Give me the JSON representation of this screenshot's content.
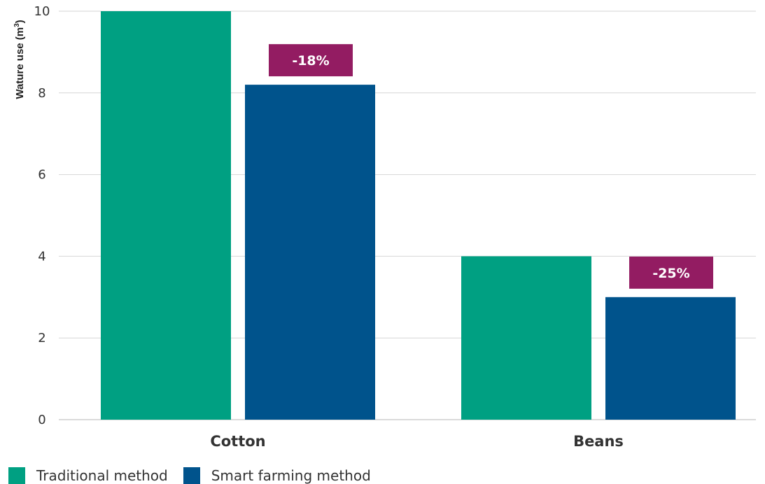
{
  "chart_data": {
    "type": "bar",
    "categories": [
      "Cotton",
      "Beans"
    ],
    "series": [
      {
        "name": "Traditional method",
        "values": [
          10,
          4
        ],
        "color": "#00a082"
      },
      {
        "name": "Smart farming method",
        "values": [
          8.2,
          3
        ],
        "color": "#00538c"
      }
    ],
    "annotations": [
      "-18%",
      "-25%"
    ],
    "annotation_color": "#931c62",
    "ylabel_main": "Wature use (m",
    "ylabel_sup": "3",
    "ylabel_close": ")",
    "ylim": [
      0,
      10
    ],
    "yticks": [
      "0",
      "2",
      "4",
      "6",
      "8",
      "10"
    ],
    "grid": true,
    "legend_position": "bottom-left"
  }
}
